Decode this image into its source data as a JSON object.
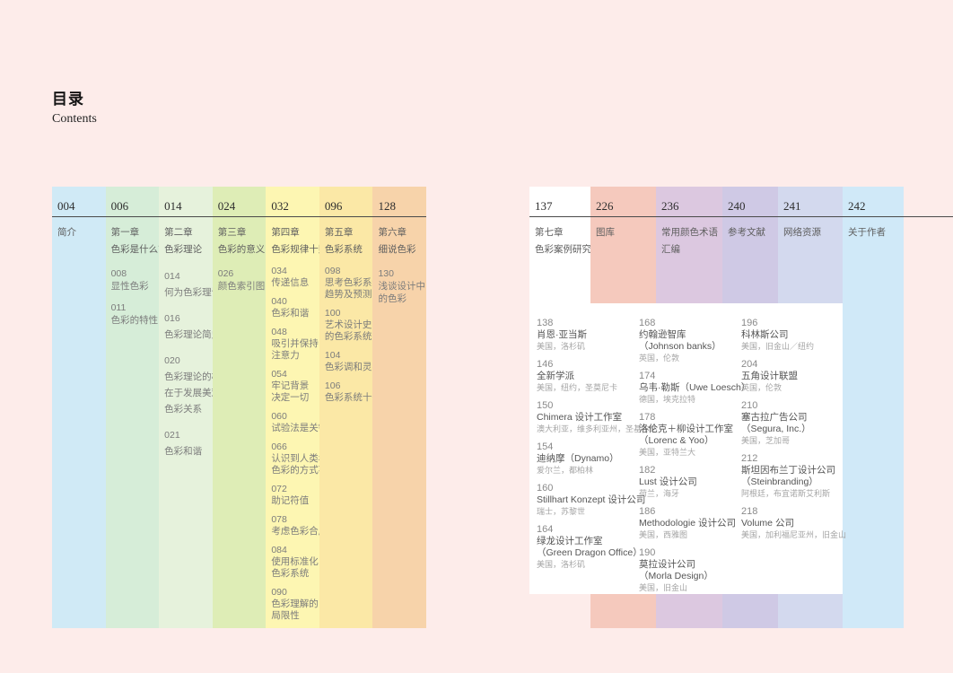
{
  "header": {
    "title_zh": "目录",
    "title_en": "Contents"
  },
  "colors": {
    "background": "#fdecea",
    "rule": "#4a4a4a",
    "panel": "#ffffff"
  },
  "left_group": {
    "columns": [
      {
        "page": "004",
        "color": "#d0eaf6",
        "leading": "",
        "chapter_lines": [
          "简介"
        ],
        "items": []
      },
      {
        "page": "006",
        "color": "#d6edd8",
        "leading": "",
        "chapter_lines": [
          "第一章",
          "色彩是什么？"
        ],
        "items": [
          {
            "num": "008",
            "lines": [
              "显性色彩"
            ]
          },
          {
            "num": "011",
            "lines": [
              "色彩的特性"
            ]
          }
        ]
      },
      {
        "page": "014",
        "color": "#e6f2dc",
        "leading": "loose",
        "chapter_lines": [
          "第二章",
          "色彩理论"
        ],
        "items": [
          {
            "num": "014",
            "lines": [
              "何为色彩理论？"
            ]
          },
          {
            "num": "016",
            "lines": [
              "色彩理论简史"
            ]
          },
          {
            "num": "020",
            "lines": [
              "色彩理论的核心",
              "在于发展美观的",
              "色彩关系"
            ]
          },
          {
            "num": "021",
            "lines": [
              "色彩和谐"
            ]
          }
        ]
      },
      {
        "page": "024",
        "color": "#deedb6",
        "leading": "",
        "chapter_lines": [
          "第三章",
          "色彩的意义"
        ],
        "items": [
          {
            "num": "026",
            "lines": [
              "颜色索引图"
            ]
          }
        ]
      },
      {
        "page": "032",
        "color": "#fdf6b2",
        "leading": "dense",
        "chapter_lines": [
          "第四章",
          "色彩规律十则"
        ],
        "items": [
          {
            "num": "034",
            "lines": [
              "传递信息"
            ]
          },
          {
            "num": "040",
            "lines": [
              "色彩和谐"
            ]
          },
          {
            "num": "048",
            "lines": [
              "吸引并保持",
              "注意力"
            ]
          },
          {
            "num": "054",
            "lines": [
              "牢记背景",
              "决定一切"
            ]
          },
          {
            "num": "060",
            "lines": [
              "试验法是关键"
            ]
          },
          {
            "num": "066",
            "lines": [
              "认识到人类看待",
              "色彩的方式不同"
            ]
          },
          {
            "num": "072",
            "lines": [
              "助记符值"
            ]
          },
          {
            "num": "078",
            "lines": [
              "考虑色彩合成"
            ]
          },
          {
            "num": "084",
            "lines": [
              "使用标准化",
              "色彩系统"
            ]
          },
          {
            "num": "090",
            "lines": [
              "色彩理解的",
              "局限性"
            ]
          }
        ]
      },
      {
        "page": "096",
        "color": "#fbe8a6",
        "leading": "dense",
        "chapter_lines": [
          "第五章",
          "色彩系统"
        ],
        "items": [
          {
            "num": "098",
            "lines": [
              "思考色彩系统",
              "趋势及预测"
            ]
          },
          {
            "num": "100",
            "lines": [
              "艺术设计史中",
              "的色彩系统"
            ]
          },
          {
            "num": "104",
            "lines": [
              "色彩调和灵感"
            ]
          },
          {
            "num": "106",
            "lines": [
              "色彩系统十一则"
            ]
          }
        ]
      },
      {
        "page": "128",
        "color": "#f7d3aa",
        "leading": "",
        "chapter_lines": [
          "第六章",
          "细说色彩"
        ],
        "items": [
          {
            "num": "130",
            "lines": [
              "浅谈设计中",
              "的色彩"
            ]
          }
        ]
      }
    ]
  },
  "right_group": {
    "columns": [
      {
        "page": "137",
        "color": "#ffffff",
        "chapter_lines": [
          "第七章",
          "色彩案例研究"
        ]
      },
      {
        "page": "226",
        "color": "#f5c9bd",
        "chapter_lines": [
          "图库"
        ]
      },
      {
        "page": "236",
        "color": "#dcc8e0",
        "chapter_lines": [
          "常用颜色术语",
          "汇编"
        ]
      },
      {
        "page": "240",
        "color": "#cfc9e5",
        "chapter_lines": [
          "参考文献"
        ]
      },
      {
        "page": "241",
        "color": "#d3d9ee",
        "chapter_lines": [
          "网络资源"
        ]
      },
      {
        "page": "242",
        "color": "#d0e9f8",
        "chapter_lines": [
          "关于作者"
        ]
      }
    ],
    "case_studies": [
      [
        {
          "num": "138",
          "name_lines": [
            "肖恩·亚当斯"
          ],
          "location": "美国，洛杉矶"
        },
        {
          "num": "146",
          "name_lines": [
            "全新学派"
          ],
          "location": "美国，纽约，圣莫尼卡"
        },
        {
          "num": "150",
          "name_lines": [
            "Chimera 设计工作室"
          ],
          "location": "澳大利亚，维多利亚州，圣基尔达"
        },
        {
          "num": "154",
          "name_lines": [
            "迪纳摩（Dynamo）"
          ],
          "location": "爱尔兰，都柏林"
        },
        {
          "num": "160",
          "name_lines": [
            "Stillhart Konzept 设计公司"
          ],
          "location": "瑞士，苏黎世"
        },
        {
          "num": "164",
          "name_lines": [
            "绿龙设计工作室",
            "（Green Dragon Office）"
          ],
          "location": "美国，洛杉矶"
        }
      ],
      [
        {
          "num": "168",
          "name_lines": [
            "约翰逊智库",
            "（Johnson banks）"
          ],
          "location": "英国，伦敦"
        },
        {
          "num": "174",
          "name_lines": [
            "乌韦·勒斯（Uwe Loesch）"
          ],
          "location": "德国，埃克拉特"
        },
        {
          "num": "178",
          "name_lines": [
            "洛伦克＋柳设计工作室",
            "（Lorenc & Yoo）"
          ],
          "location": "美国，亚特兰大"
        },
        {
          "num": "182",
          "name_lines": [
            "Lust 设计公司"
          ],
          "location": "荷兰，海牙"
        },
        {
          "num": "186",
          "name_lines": [
            "Methodologie 设计公司"
          ],
          "location": "美国，西雅图"
        },
        {
          "num": "190",
          "name_lines": [
            "莫拉设计公司",
            "（Morla Design）"
          ],
          "location": "美国，旧金山"
        }
      ],
      [
        {
          "num": "196",
          "name_lines": [
            "科林斯公司"
          ],
          "location": "美国，旧金山／纽约"
        },
        {
          "num": "204",
          "name_lines": [
            "五角设计联盟"
          ],
          "location": "英国，伦敦"
        },
        {
          "num": "210",
          "name_lines": [
            "塞古拉广告公司",
            "（Segura, Inc.）"
          ],
          "location": "美国，芝加哥"
        },
        {
          "num": "212",
          "name_lines": [
            "斯坦因布兰丁设计公司",
            "（Steinbranding）"
          ],
          "location": "阿根廷，布宜诺斯艾利斯"
        },
        {
          "num": "218",
          "name_lines": [
            "Volume 公司"
          ],
          "location": "美国，加利福尼亚州，旧金山"
        }
      ]
    ]
  }
}
